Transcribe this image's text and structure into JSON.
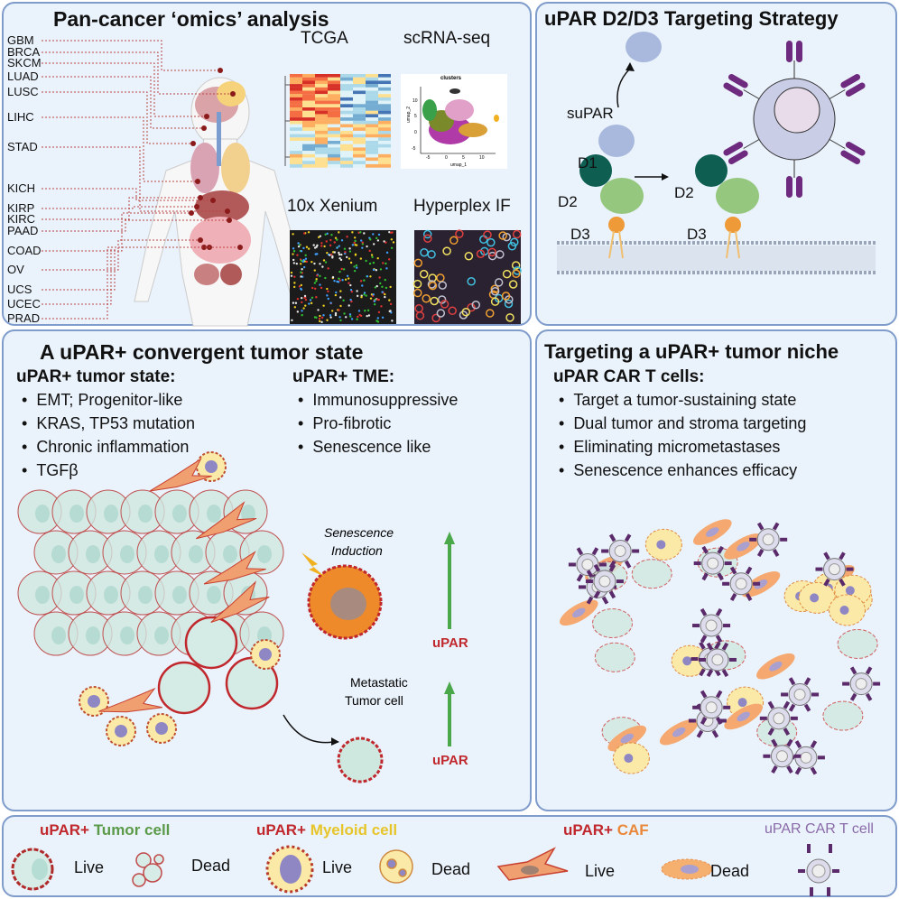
{
  "panels": {
    "omics": {
      "title": "Pan-cancer ‘omics’ analysis",
      "cancer_types": [
        "GBM",
        "BRCA",
        "SKCM",
        "LUAD",
        "LUSC",
        "LIHC",
        "STAD",
        "KICH",
        "KIRP",
        "KIRC",
        "PAAD",
        "COAD",
        "OV",
        "UCS",
        "UCEC",
        "PRAD"
      ],
      "methods": {
        "tcga": "TCGA",
        "scrna": "scRNA-seq",
        "xenium": "10x Xenium",
        "hyperplex": "Hyperplex IF"
      },
      "umap": {
        "title": "clusters",
        "xlabel": "umap_1",
        "ylabel": "umap_2",
        "xticks": [
          "-5",
          "0",
          "5",
          "10"
        ],
        "yticks": [
          "10",
          "5",
          "0",
          "-5"
        ]
      }
    },
    "targeting": {
      "title": "uPAR D2/D3 Targeting Strategy",
      "labels": {
        "supar": "suPAR",
        "d1": "D1",
        "d2": "D2",
        "d3": "D3",
        "d2b": "D2",
        "d3b": "D3"
      }
    },
    "convergent": {
      "title": "A uPAR+ convergent tumor state",
      "tumor_state": {
        "heading": "uPAR+ tumor state:",
        "items": [
          "EMT; Progenitor-like",
          "KRAS, TP53 mutation",
          "Chronic inflammation",
          "TGFβ"
        ]
      },
      "tme": {
        "heading": "uPAR+ TME:",
        "items": [
          "Immunosuppressive",
          "Pro-fibrotic",
          "Senescence like"
        ]
      },
      "senescence_label": [
        "Senescence",
        "Induction"
      ],
      "metastatic_label": [
        "Metastatic",
        "Tumor cell"
      ],
      "upar_label_1": "uPAR",
      "upar_label_2": "uPAR"
    },
    "niche": {
      "title": "Targeting a uPAR+ tumor niche",
      "heading": "uPAR CAR T cells:",
      "items": [
        "Target a tumor-sustaining state",
        "Dual tumor and stroma targeting",
        "Eliminating micrometastases",
        "Senescence enhances efficacy"
      ]
    }
  },
  "legend": {
    "tumor": {
      "prefix": "uPAR+",
      "name": "Tumor cell",
      "live": "Live",
      "dead": "Dead"
    },
    "myeloid": {
      "prefix": "uPAR+",
      "name": "Myeloid cell",
      "live": "Live",
      "dead": "Dead"
    },
    "caf": {
      "prefix": "uPAR+",
      "name": "CAF",
      "live": "Live",
      "dead": "Dead"
    },
    "cart": {
      "name": "uPAR CAR T cell"
    }
  },
  "colors": {
    "panel_bg": "#eaf2fb",
    "panel_border": "#7f9ccb",
    "upar_red": "#c0282d",
    "tumor_green": "#5a9a48",
    "myeloid_yellow": "#e7c52a",
    "caf_orange": "#e9883a",
    "cart_purple": "#8a6aa8",
    "arrow_green": "#4aa84a"
  }
}
